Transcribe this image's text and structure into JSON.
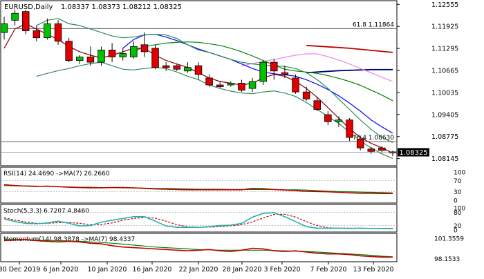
{
  "chart_data": {
    "type": "candlestick",
    "symbol_label": "EURUSD,Daily",
    "ohlc_label": "1.08337 1.08373 1.08212 1.08325",
    "last_price_label": "1.08325",
    "price_axis": {
      "ylim": [
        1.0796,
        1.1264
      ],
      "tick_labels": [
        "1.12555",
        "1.11925",
        "1.11295",
        "1.10665",
        "1.10035",
        "1.09405",
        "1.08775",
        "1.08145"
      ]
    },
    "x_axis_labels": [
      "30 Dec 2019",
      "6 Jan 2020",
      "10 Jan 2020",
      "16 Jan 2020",
      "22 Jan 2020",
      "28 Jan 2020",
      "3 Feb 2020",
      "7 Feb 2020",
      "13 Feb 2020"
    ],
    "fib_levels": [
      {
        "label": "61.8 1.11864",
        "value": 1.11864
      },
      {
        "label": "76.4 1.08630",
        "value": 1.0863
      }
    ],
    "candles": [
      {
        "o": 1.1175,
        "h": 1.122,
        "l": 1.1155,
        "c": 1.12
      },
      {
        "o": 1.121,
        "h": 1.124,
        "l": 1.1195,
        "c": 1.123
      },
      {
        "o": 1.1235,
        "h": 1.124,
        "l": 1.117,
        "c": 1.118
      },
      {
        "o": 1.118,
        "h": 1.1195,
        "l": 1.115,
        "c": 1.116
      },
      {
        "o": 1.116,
        "h": 1.1215,
        "l": 1.1155,
        "c": 1.12
      },
      {
        "o": 1.12,
        "h": 1.121,
        "l": 1.114,
        "c": 1.115
      },
      {
        "o": 1.115,
        "h": 1.116,
        "l": 1.109,
        "c": 1.1095
      },
      {
        "o": 1.1095,
        "h": 1.111,
        "l": 1.1085,
        "c": 1.1105
      },
      {
        "o": 1.1105,
        "h": 1.1135,
        "l": 1.108,
        "c": 1.109
      },
      {
        "o": 1.109,
        "h": 1.1135,
        "l": 1.108,
        "c": 1.1125
      },
      {
        "o": 1.1125,
        "h": 1.1145,
        "l": 1.109,
        "c": 1.1105
      },
      {
        "o": 1.1105,
        "h": 1.113,
        "l": 1.1095,
        "c": 1.1115
      },
      {
        "o": 1.1105,
        "h": 1.115,
        "l": 1.11,
        "c": 1.1135
      },
      {
        "o": 1.114,
        "h": 1.1175,
        "l": 1.1105,
        "c": 1.112
      },
      {
        "o": 1.113,
        "h": 1.114,
        "l": 1.107,
        "c": 1.1075
      },
      {
        "o": 1.108,
        "h": 1.109,
        "l": 1.1065,
        "c": 1.1075
      },
      {
        "o": 1.108,
        "h": 1.1085,
        "l": 1.1065,
        "c": 1.107
      },
      {
        "o": 1.1065,
        "h": 1.109,
        "l": 1.106,
        "c": 1.1075
      },
      {
        "o": 1.108,
        "h": 1.109,
        "l": 1.104,
        "c": 1.1055
      },
      {
        "o": 1.1045,
        "h": 1.1055,
        "l": 1.102,
        "c": 1.1025
      },
      {
        "o": 1.1025,
        "h": 1.1035,
        "l": 1.1015,
        "c": 1.102
      },
      {
        "o": 1.1025,
        "h": 1.1035,
        "l": 1.102,
        "c": 1.103
      },
      {
        "o": 1.103,
        "h": 1.104,
        "l": 1.1005,
        "c": 1.101
      },
      {
        "o": 1.1015,
        "h": 1.1045,
        "l": 1.1005,
        "c": 1.1035
      },
      {
        "o": 1.1035,
        "h": 1.1095,
        "l": 1.1025,
        "c": 1.109
      },
      {
        "o": 1.109,
        "h": 1.11,
        "l": 1.104,
        "c": 1.1065
      },
      {
        "o": 1.106,
        "h": 1.108,
        "l": 1.1045,
        "c": 1.1055
      },
      {
        "o": 1.1045,
        "h": 1.1055,
        "l": 1.1,
        "c": 1.1005
      },
      {
        "o": 1.1005,
        "h": 1.102,
        "l": 1.098,
        "c": 1.0985
      },
      {
        "o": 1.098,
        "h": 1.099,
        "l": 1.095,
        "c": 1.0955
      },
      {
        "o": 1.094,
        "h": 1.095,
        "l": 1.091,
        "c": 1.092
      },
      {
        "o": 1.092,
        "h": 1.0935,
        "l": 1.0905,
        "c": 1.0925
      },
      {
        "o": 1.0925,
        "h": 1.093,
        "l": 1.0865,
        "c": 1.0875
      },
      {
        "o": 1.087,
        "h": 1.088,
        "l": 1.0838,
        "c": 1.0845
      },
      {
        "o": 1.0842,
        "h": 1.0848,
        "l": 1.0828,
        "c": 1.0835
      },
      {
        "o": 1.0845,
        "h": 1.085,
        "l": 1.0832,
        "c": 1.0838
      },
      {
        "o": 1.08337,
        "h": 1.08373,
        "l": 1.08212,
        "c": 1.08325
      }
    ],
    "moving_averages": [
      {
        "color": "#c00000",
        "values": [
          1.1138,
          1.1136,
          1.1134,
          1.1132,
          1.113,
          1.1127,
          1.1124,
          1.1121,
          1.1118
        ]
      },
      {
        "color": "#000080",
        "values": [
          1.106,
          1.1062,
          1.1064,
          1.1066,
          1.1067,
          1.1068,
          1.1069,
          1.1069,
          1.1069
        ]
      },
      {
        "color": "#ee82ee",
        "values": [
          1.108,
          1.1086,
          1.1092,
          1.1098,
          1.1104,
          1.111,
          1.1114,
          1.1114,
          1.1106,
          1.1096,
          1.1085,
          1.1072,
          1.106,
          1.1047,
          1.1035
        ]
      },
      {
        "color": "#0000ff",
        "values": [
          1.113,
          1.1155,
          1.1168,
          1.117,
          1.1162,
          1.1152,
          1.114,
          1.1128,
          1.1118,
          1.1108,
          1.1098,
          1.1085,
          1.1072,
          1.1062,
          1.1057,
          1.1054,
          1.105,
          1.104,
          1.1027,
          1.1012,
          1.0994,
          1.0973,
          1.095,
          1.0925,
          1.0905,
          1.0887
        ]
      },
      {
        "color": "#008000",
        "values": [
          1.112,
          1.1135,
          1.114,
          1.1145,
          1.1147,
          1.1148,
          1.1147,
          1.1143,
          1.1138,
          1.113,
          1.112,
          1.1108,
          1.1095,
          1.1082,
          1.107,
          1.1065,
          1.1062,
          1.1058,
          1.1052,
          1.1044,
          1.1035,
          1.1024,
          1.101,
          1.0996,
          1.098
        ]
      },
      {
        "color": "#800000",
        "values": [
          1.113,
          1.1185,
          1.12,
          1.1185,
          1.117,
          1.1155,
          1.1135,
          1.112,
          1.111,
          1.1102,
          1.111,
          1.112,
          1.113,
          1.113,
          1.111,
          1.1095,
          1.1085,
          1.1075,
          1.106,
          1.1045,
          1.1035,
          1.103,
          1.1025,
          1.103,
          1.1045,
          1.1055,
          1.105,
          1.1035,
          1.1015,
          1.099,
          1.096,
          1.093,
          1.09,
          1.0875,
          1.0858,
          1.0845,
          1.083
        ]
      },
      {
        "color": "#2e8b57",
        "values": [
          1.1195,
          1.121,
          1.1215,
          1.12,
          1.1195,
          1.1185,
          1.1175,
          1.1165,
          1.116,
          1.1162,
          1.1168,
          1.117,
          1.1168,
          1.1158,
          1.114,
          1.1125,
          1.1118,
          1.1108,
          1.1098,
          1.109,
          1.1085,
          1.1082,
          1.108,
          1.1078,
          1.1072,
          1.106,
          1.104,
          1.1015,
          1.0985,
          1.0955,
          1.0925,
          1.0898,
          1.0875,
          1.086
        ]
      },
      {
        "color": "#2e8b57",
        "values": [
          1.105,
          1.1058,
          1.1066,
          1.1072,
          1.108,
          1.1086,
          1.109,
          1.108,
          1.107,
          1.1068,
          1.1072,
          1.1075,
          1.1072,
          1.1062,
          1.105,
          1.104,
          1.1025,
          1.1015,
          1.1007,
          1.1002,
          1.1,
          1.1005,
          1.1008,
          1.1002,
          1.0992,
          1.0975,
          1.0955,
          1.0935,
          1.0915,
          1.089,
          1.0865,
          1.0845,
          1.0828,
          1.0815
        ]
      }
    ],
    "rsi": {
      "label": "RSI(14) 24.4690 ->MA(7) 26.2660",
      "ylim": [
        0,
        100
      ],
      "tick_labels": [
        "100",
        "70",
        "30",
        "0"
      ],
      "levels": [
        70,
        30
      ],
      "value_color": "#c00000",
      "ma_color": "#008000",
      "values": [
        55,
        52,
        50,
        49,
        50,
        48,
        46,
        45,
        44,
        44,
        45,
        45,
        44,
        42,
        40,
        39,
        38,
        37,
        37,
        37,
        37,
        37,
        37,
        42,
        41,
        38,
        36,
        34,
        32,
        31,
        30,
        28,
        26,
        25,
        25,
        24,
        24
      ],
      "ma": [
        52,
        51,
        51,
        50,
        49,
        48,
        47,
        46,
        46,
        45,
        45,
        44,
        44,
        43,
        42,
        42,
        41,
        40,
        39,
        39,
        39,
        38,
        38,
        38,
        38,
        38,
        37,
        37,
        36,
        34,
        32,
        31,
        30,
        29,
        28,
        27,
        26
      ]
    },
    "stoch": {
      "label": "Stoch(5,3,3) 6.7207 4.8460",
      "ylim": [
        0,
        100
      ],
      "tick_labels": [
        "100",
        "80",
        "20",
        "0"
      ],
      "levels": [
        80,
        20
      ],
      "k_color": "#20b2aa",
      "d_color": "#c00000",
      "k": [
        50,
        38,
        30,
        28,
        32,
        40,
        30,
        18,
        20,
        36,
        44,
        52,
        60,
        60,
        40,
        18,
        12,
        12,
        12,
        15,
        20,
        22,
        30,
        58,
        75,
        78,
        60,
        38,
        15,
        8,
        8,
        8,
        7,
        8,
        7,
        7,
        7
      ],
      "d": [
        55,
        45,
        36,
        30,
        30,
        33,
        34,
        30,
        24,
        25,
        32,
        44,
        52,
        57,
        53,
        40,
        24,
        14,
        12,
        13,
        15,
        19,
        24,
        37,
        54,
        70,
        71,
        58,
        38,
        20,
        10,
        8,
        8,
        8,
        7,
        6,
        5
      ]
    },
    "momentum": {
      "label": "Momentum(14) 98.3878 ->MA(7) 98.4337",
      "tick_labels": [
        "101.3559",
        "98.1533"
      ],
      "ylim": [
        98.0,
        101.6
      ],
      "value_color": "#c00000",
      "ma_color": "#008000",
      "values": [
        101.0,
        101.1,
        101.2,
        101.0,
        100.9,
        100.8,
        100.9,
        100.8,
        100.6,
        100.5,
        100.2,
        100.0,
        99.9,
        99.8,
        99.7,
        99.6,
        99.5,
        99.4,
        99.5,
        99.6,
        99.4,
        99.3,
        99.5,
        99.8,
        99.7,
        99.4,
        99.3,
        99.4,
        99.2,
        99.0,
        98.9,
        98.9,
        98.8,
        98.6,
        98.5,
        98.4,
        98.4
      ],
      "ma": [
        101.2,
        101.2,
        101.15,
        101.1,
        101.05,
        101.0,
        100.95,
        100.9,
        100.8,
        100.7,
        100.6,
        100.45,
        100.3,
        100.15,
        100.0,
        99.9,
        99.8,
        99.7,
        99.6,
        99.55,
        99.5,
        99.5,
        99.5,
        99.5,
        99.5,
        99.45,
        99.4,
        99.35,
        99.3,
        99.2,
        99.1,
        99.0,
        98.9,
        98.8,
        98.7,
        98.55,
        98.45
      ]
    }
  }
}
